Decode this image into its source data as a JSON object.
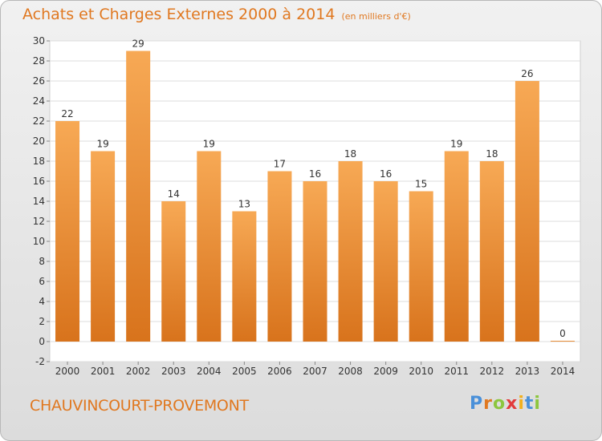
{
  "title": "Achats et Charges Externes 2000 à 2014",
  "unit": "(en milliers d'€)",
  "commune": "CHAUVINCOURT-PROVEMONT",
  "logo_text": "Proxiti",
  "colors": {
    "accent": "#e07820",
    "bar_light": "#f7a955",
    "bar_dark": "#d8731c"
  },
  "chart_data": {
    "type": "bar",
    "title": "Achats et Charges Externes 2000 à 2014",
    "subtitle": "(en milliers d'€)",
    "xlabel": "",
    "ylabel": "",
    "categories": [
      "2000",
      "2001",
      "2002",
      "2003",
      "2004",
      "2005",
      "2006",
      "2007",
      "2008",
      "2009",
      "2010",
      "2011",
      "2012",
      "2013",
      "2014"
    ],
    "values": [
      22,
      19,
      29,
      14,
      19,
      13,
      17,
      16,
      18,
      16,
      15,
      19,
      18,
      26,
      0
    ],
    "ylim": [
      -2,
      30
    ],
    "yticks": [
      -2,
      0,
      2,
      4,
      6,
      8,
      10,
      12,
      14,
      16,
      18,
      20,
      22,
      24,
      26,
      28,
      30
    ],
    "grid": true
  }
}
